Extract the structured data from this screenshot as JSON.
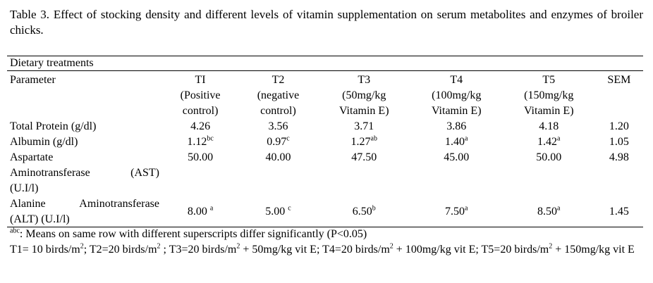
{
  "caption": "Table 3. Effect of stocking density and different levels of vitamin supplementation on serum metabolites and enzymes of broiler chicks.",
  "group_header": "Dietary treatments",
  "columns": {
    "parameter": "Parameter",
    "t1": [
      "TI",
      "(Positive",
      "control)"
    ],
    "t2": [
      "T2",
      "(negative",
      "control)"
    ],
    "t3": [
      "T3",
      "(50mg/kg",
      "Vitamin E)"
    ],
    "t4": [
      "T4",
      "(100mg/kg",
      "Vitamin E)"
    ],
    "t5": [
      "T5",
      "(150mg/kg",
      "Vitamin E)"
    ],
    "sem": "SEM"
  },
  "rows": [
    {
      "param": [
        "Total Protein (g/dl)"
      ],
      "t1": {
        "v": "4.26",
        "s": ""
      },
      "t2": {
        "v": "3.56",
        "s": ""
      },
      "t3": {
        "v": "3.71",
        "s": ""
      },
      "t4": {
        "v": "3.86",
        "s": ""
      },
      "t5": {
        "v": "4.18",
        "s": ""
      },
      "sem": "1.20"
    },
    {
      "param": [
        "Albumin (g/dl)"
      ],
      "t1": {
        "v": "1.12",
        "s": "bc"
      },
      "t2": {
        "v": "0.97",
        "s": "c"
      },
      "t3": {
        "v": "1.27",
        "s": "ab"
      },
      "t4": {
        "v": "1.40",
        "s": "a"
      },
      "t5": {
        "v": "1.42",
        "s": "a"
      },
      "sem": "1.05"
    },
    {
      "param": [
        "Aspartate",
        "Aminotransferase    (AST)",
        "(U.I/l)"
      ],
      "t1": {
        "v": "50.00",
        "s": ""
      },
      "t2": {
        "v": "40.00",
        "s": ""
      },
      "t3": {
        "v": "47.50",
        "s": ""
      },
      "t4": {
        "v": "45.00",
        "s": ""
      },
      "t5": {
        "v": "50.00",
        "s": ""
      },
      "sem": "4.98"
    },
    {
      "param": [
        "Alanine  Aminotransferase",
        "(ALT) (U.I/l)"
      ],
      "t1": {
        "v": "8.00",
        "s": "a"
      },
      "t2": {
        "v": "5.00",
        "s": "c"
      },
      "t3": {
        "v": "6.50",
        "s": "b"
      },
      "t4": {
        "v": "7.50",
        "s": "a"
      },
      "t5": {
        "v": "8.50",
        "s": "a"
      },
      "sem": "1.45"
    }
  ],
  "notes": {
    "sig_sup": "abc",
    "sig_text": ": Means on same row with different superscripts differ significantly (P<0.05)",
    "def_parts": [
      "T1= 10 birds/m",
      "2",
      ";  T2=20 birds/m",
      "2",
      " ; T3=20 birds/m",
      "2",
      " + 50mg/kg vit E; T4=20 birds/m",
      "2",
      " + 100mg/kg vit E; T5=20 birds/m",
      "2",
      " + 150mg/kg vit E"
    ]
  }
}
